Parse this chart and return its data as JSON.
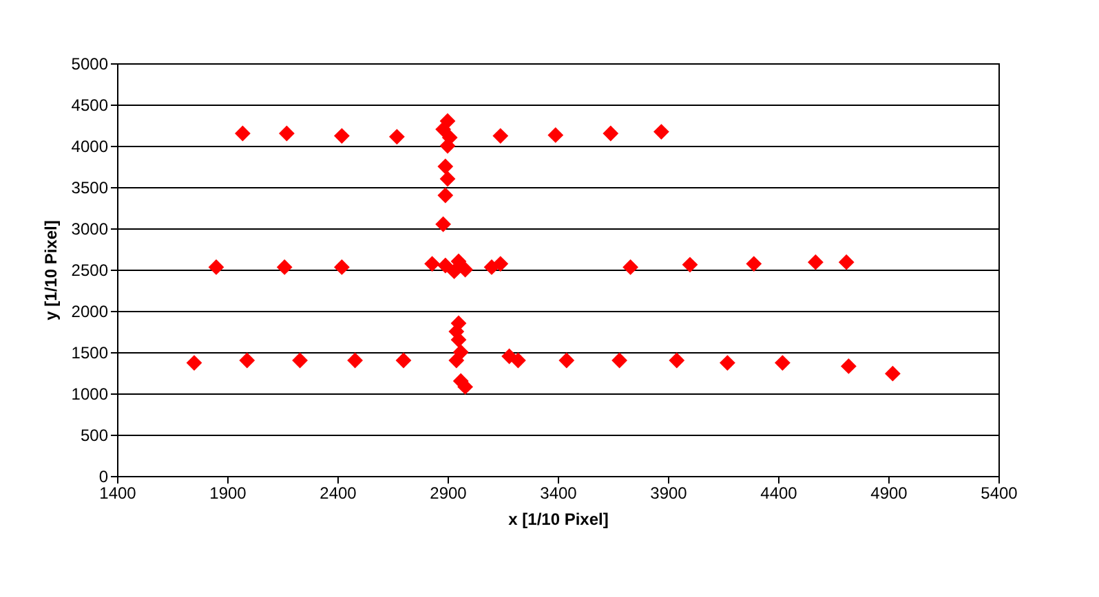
{
  "chart_data": {
    "type": "scatter",
    "xlabel": "x [1/10 Pixel]",
    "ylabel": "y [1/10 Pixel]",
    "x": [
      1970,
      2170,
      2420,
      2670,
      3140,
      3390,
      3640,
      3870,
      2900,
      2880,
      2910,
      2900,
      2890,
      2900,
      2890,
      2880,
      1850,
      2160,
      2420,
      2830,
      2890,
      2950,
      2980,
      2930,
      3100,
      3140,
      3730,
      4000,
      4290,
      4570,
      4710,
      1750,
      1990,
      2230,
      2480,
      2700,
      2950,
      2940,
      2950,
      2960,
      2940,
      2960,
      2980,
      3180,
      3220,
      3440,
      3680,
      3940,
      4170,
      4420,
      4720,
      4920
    ],
    "values": [
      4150,
      4150,
      4120,
      4110,
      4120,
      4130,
      4150,
      4170,
      4300,
      4200,
      4100,
      4000,
      3750,
      3600,
      3400,
      3050,
      2530,
      2530,
      2530,
      2570,
      2550,
      2600,
      2500,
      2480,
      2530,
      2570,
      2530,
      2560,
      2570,
      2590,
      2590,
      1370,
      1400,
      1400,
      1400,
      1400,
      1850,
      1750,
      1650,
      1500,
      1400,
      1150,
      1080,
      1450,
      1400,
      1400,
      1400,
      1400,
      1370,
      1370,
      1330,
      1240
    ],
    "color": "#ff0000",
    "marker": "diamond",
    "xlim": [
      1400,
      5400
    ],
    "xticks": [
      1400,
      1900,
      2400,
      2900,
      3400,
      3900,
      4400,
      4900,
      5400
    ],
    "ylim": [
      0,
      5000
    ],
    "yticks": [
      0,
      500,
      1000,
      1500,
      2000,
      2500,
      3000,
      3500,
      4000,
      4500,
      5000
    ],
    "grid": "y"
  }
}
